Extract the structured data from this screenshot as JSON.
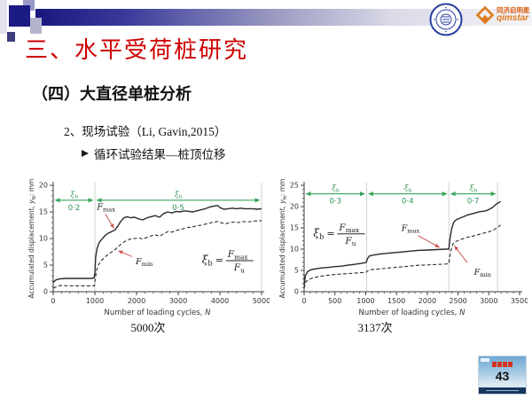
{
  "header": {
    "title": "三、水平受荷桩研究",
    "logos": {
      "seal_icon": "tongji-university-seal",
      "qimstar_icon": "orange-diamond",
      "qimstar_cn": "同济启明星",
      "qimstar_en": "qimstar"
    }
  },
  "body": {
    "section_heading": "（四）大直径单桩分析",
    "item": "2、现场试验（Li, Gavin,2015）",
    "bullet": {
      "icon": "arrowhead-right",
      "text": "循环试验结果—桩顶位移"
    },
    "captions": {
      "left": "5000次",
      "right": "3137次"
    }
  },
  "footer": {
    "page_number": "43"
  },
  "colors": {
    "title_red": "#cc0000",
    "arrow_green": "#3aa45e",
    "green_text": "#2f9150",
    "annotation_red": "#cc5550",
    "bar_navy": "#1b1b86",
    "logo_orange": "#e07a1d",
    "line_dark": "#2a2a2a",
    "grid_gray": "#cccccc"
  },
  "chart_data": [
    {
      "type": "line",
      "title": "5000次",
      "xlabel_parts": {
        "pre": "Number of loading cycles, ",
        "var": "N"
      },
      "ylabel_parts": {
        "pre": "Accumulated displacement, ",
        "var": "y",
        "sub": "N",
        "post": ": mm"
      },
      "xlim": [
        0,
        5000
      ],
      "ylim": [
        0,
        20
      ],
      "xticks": [
        0,
        1000,
        2000,
        3000,
        4000,
        5000
      ],
      "yticks": [
        0,
        5,
        10,
        15,
        20
      ],
      "x_minor_step": 200,
      "y_minor_step": 1,
      "grid": false,
      "legend": "none",
      "boundary_lines": [
        1000,
        5000
      ],
      "ratio_arrow_y": 17.2,
      "ratio_segments": [
        {
          "symbol": "ξ_b",
          "value": "0·2",
          "from": 0,
          "to": 1000
        },
        {
          "symbol": "ξ_b",
          "value": "0·5",
          "from": 1000,
          "to": 5000
        }
      ],
      "equation": {
        "lhs": "ξ_b",
        "num": "F_max",
        "den": "F_u",
        "x": 3570,
        "y": 6.0
      },
      "annotations": [
        {
          "label": "F_max",
          "x": 1050,
          "y": 15.4,
          "ax": 1250,
          "ay": 14.6,
          "tx": 1460,
          "ty": 11.9
        },
        {
          "label": "F_min",
          "x": 1980,
          "y": 5.2,
          "ax": 1900,
          "ay": 6.6,
          "tx": 1560,
          "ty": 7.7
        }
      ],
      "series": [
        {
          "name": "F_max",
          "style": "solid",
          "points": [
            [
              0,
              1.7
            ],
            [
              60,
              2.2
            ],
            [
              150,
              2.4
            ],
            [
              300,
              2.5
            ],
            [
              500,
              2.5
            ],
            [
              700,
              2.5
            ],
            [
              900,
              2.5
            ],
            [
              980,
              2.6
            ],
            [
              1000,
              3.5
            ],
            [
              1020,
              6.5
            ],
            [
              1050,
              8.0
            ],
            [
              1100,
              9.2
            ],
            [
              1180,
              10.0
            ],
            [
              1250,
              10.6
            ],
            [
              1320,
              11.0
            ],
            [
              1400,
              11.3
            ],
            [
              1480,
              11.6
            ],
            [
              1550,
              12.3
            ],
            [
              1620,
              13.2
            ],
            [
              1700,
              13.9
            ],
            [
              1780,
              14.1
            ],
            [
              1850,
              13.9
            ],
            [
              1950,
              14.0
            ],
            [
              2050,
              13.7
            ],
            [
              2150,
              13.5
            ],
            [
              2250,
              13.9
            ],
            [
              2350,
              14.1
            ],
            [
              2450,
              14.3
            ],
            [
              2550,
              14.0
            ],
            [
              2650,
              14.7
            ],
            [
              2750,
              15.0
            ],
            [
              2850,
              14.8
            ],
            [
              2950,
              15.1
            ],
            [
              3050,
              15.0
            ],
            [
              3150,
              15.2
            ],
            [
              3250,
              15.1
            ],
            [
              3350,
              15.0
            ],
            [
              3450,
              15.2
            ],
            [
              3550,
              15.4
            ],
            [
              3650,
              15.6
            ],
            [
              3750,
              15.9
            ],
            [
              3850,
              16.1
            ],
            [
              3950,
              16.2
            ],
            [
              4000,
              15.8
            ],
            [
              4100,
              15.5
            ],
            [
              4200,
              15.6
            ],
            [
              4300,
              15.7
            ],
            [
              4400,
              15.6
            ],
            [
              4500,
              15.7
            ],
            [
              4600,
              15.6
            ],
            [
              4700,
              15.6
            ],
            [
              4800,
              15.6
            ],
            [
              4900,
              15.5
            ],
            [
              5000,
              15.6
            ]
          ]
        },
        {
          "name": "F_min",
          "style": "dashed",
          "points": [
            [
              0,
              0.7
            ],
            [
              100,
              1.0
            ],
            [
              200,
              1.2
            ],
            [
              350,
              1.1
            ],
            [
              500,
              1.1
            ],
            [
              700,
              1.1
            ],
            [
              900,
              1.1
            ],
            [
              990,
              1.1
            ],
            [
              1010,
              2.5
            ],
            [
              1040,
              4.0
            ],
            [
              1080,
              5.0
            ],
            [
              1150,
              5.8
            ],
            [
              1250,
              6.6
            ],
            [
              1350,
              7.2
            ],
            [
              1450,
              7.7
            ],
            [
              1500,
              8.0
            ],
            [
              1550,
              8.4
            ],
            [
              1650,
              9.1
            ],
            [
              1750,
              9.6
            ],
            [
              1850,
              9.9
            ],
            [
              1950,
              10.0
            ],
            [
              2050,
              10.1
            ],
            [
              2150,
              9.9
            ],
            [
              2250,
              10.2
            ],
            [
              2350,
              10.5
            ],
            [
              2450,
              10.7
            ],
            [
              2550,
              10.4
            ],
            [
              2650,
              10.9
            ],
            [
              2750,
              11.3
            ],
            [
              2850,
              11.2
            ],
            [
              2950,
              11.5
            ],
            [
              3050,
              11.7
            ],
            [
              3150,
              11.9
            ],
            [
              3250,
              12.1
            ],
            [
              3350,
              12.2
            ],
            [
              3450,
              12.4
            ],
            [
              3550,
              12.5
            ],
            [
              3650,
              12.7
            ],
            [
              3750,
              12.9
            ],
            [
              3850,
              13.1
            ],
            [
              3950,
              13.2
            ],
            [
              4050,
              12.9
            ],
            [
              4150,
              12.8
            ],
            [
              4250,
              13.0
            ],
            [
              4350,
              13.1
            ],
            [
              4450,
              13.0
            ],
            [
              4550,
              13.2
            ],
            [
              4650,
              13.1
            ],
            [
              4750,
              13.2
            ],
            [
              4850,
              13.3
            ],
            [
              4950,
              13.3
            ],
            [
              5000,
              13.4
            ]
          ]
        }
      ]
    },
    {
      "type": "line",
      "title": "3137次",
      "xlabel_parts": {
        "pre": "Number of loading cycles, ",
        "var": "N"
      },
      "ylabel_parts": {
        "pre": "Accumulated displacement, ",
        "var": "y",
        "sub": "N",
        "post": ": mm"
      },
      "xlim": [
        0,
        3500
      ],
      "ylim": [
        0,
        25
      ],
      "xticks": [
        0,
        500,
        1000,
        1500,
        2000,
        2500,
        3000,
        3500
      ],
      "yticks": [
        0,
        5,
        10,
        15,
        20,
        25
      ],
      "x_minor_step": 100,
      "y_minor_step": 1,
      "grid": false,
      "legend": "none",
      "boundary_lines": [
        1015,
        2350,
        3140
      ],
      "ratio_arrow_y": 23,
      "ratio_segments": [
        {
          "symbol": "ξ_b",
          "value": "0·3",
          "from": 0,
          "to": 1015
        },
        {
          "symbol": "ξ_b",
          "value": "0·4",
          "from": 1015,
          "to": 2350
        },
        {
          "symbol": "ξ_b",
          "value": "0·7",
          "from": 2350,
          "to": 3140
        }
      ],
      "equation": {
        "lhs": "ξ_b",
        "num": "F_max",
        "den": "F_u",
        "x": 150,
        "y": 13.8
      },
      "annotations": [
        {
          "label": "F_max",
          "x": 1580,
          "y": 14.3,
          "ax": 1850,
          "ay": 13.2,
          "tx": 2200,
          "ty": 10.4
        },
        {
          "label": "F_min",
          "x": 2760,
          "y": 4.0,
          "ax": 2650,
          "ay": 6.8,
          "tx": 2440,
          "ty": 10.8
        }
      ],
      "series": [
        {
          "name": "F_max",
          "style": "solid",
          "points": [
            [
              0,
              1.5
            ],
            [
              20,
              3.8
            ],
            [
              60,
              4.8
            ],
            [
              120,
              5.2
            ],
            [
              200,
              5.4
            ],
            [
              300,
              5.6
            ],
            [
              400,
              5.7
            ],
            [
              500,
              5.9
            ],
            [
              600,
              6.0
            ],
            [
              700,
              6.2
            ],
            [
              800,
              6.4
            ],
            [
              900,
              6.6
            ],
            [
              980,
              6.8
            ],
            [
              1010,
              6.9
            ],
            [
              1030,
              7.8
            ],
            [
              1060,
              8.4
            ],
            [
              1120,
              8.6
            ],
            [
              1250,
              8.9
            ],
            [
              1400,
              9.1
            ],
            [
              1550,
              9.3
            ],
            [
              1700,
              9.5
            ],
            [
              1850,
              9.7
            ],
            [
              2000,
              9.8
            ],
            [
              2150,
              9.9
            ],
            [
              2300,
              10.0
            ],
            [
              2350,
              10.0
            ],
            [
              2370,
              12.5
            ],
            [
              2400,
              15.0
            ],
            [
              2430,
              16.3
            ],
            [
              2470,
              16.9
            ],
            [
              2550,
              17.4
            ],
            [
              2650,
              18.0
            ],
            [
              2750,
              18.4
            ],
            [
              2850,
              18.8
            ],
            [
              2950,
              19.0
            ],
            [
              3000,
              19.3
            ],
            [
              3060,
              19.8
            ],
            [
              3100,
              20.3
            ],
            [
              3140,
              20.8
            ],
            [
              3170,
              21.0
            ],
            [
              3190,
              21.2
            ]
          ]
        },
        {
          "name": "F_min",
          "style": "dashed",
          "points": [
            [
              0,
              0.8
            ],
            [
              30,
              2.4
            ],
            [
              80,
              2.9
            ],
            [
              150,
              3.3
            ],
            [
              250,
              3.6
            ],
            [
              350,
              3.8
            ],
            [
              450,
              4.0
            ],
            [
              550,
              4.1
            ],
            [
              650,
              4.2
            ],
            [
              750,
              4.3
            ],
            [
              850,
              4.4
            ],
            [
              950,
              4.5
            ],
            [
              1010,
              4.6
            ],
            [
              1040,
              5.0
            ],
            [
              1100,
              5.2
            ],
            [
              1250,
              5.4
            ],
            [
              1400,
              5.6
            ],
            [
              1550,
              5.8
            ],
            [
              1700,
              6.0
            ],
            [
              1850,
              6.2
            ],
            [
              2000,
              6.3
            ],
            [
              2150,
              6.4
            ],
            [
              2300,
              6.5
            ],
            [
              2350,
              6.6
            ],
            [
              2380,
              9.5
            ],
            [
              2420,
              11.3
            ],
            [
              2460,
              11.8
            ],
            [
              2550,
              12.3
            ],
            [
              2650,
              12.8
            ],
            [
              2750,
              13.1
            ],
            [
              2850,
              13.5
            ],
            [
              2950,
              13.9
            ],
            [
              3050,
              14.3
            ],
            [
              3100,
              14.7
            ],
            [
              3140,
              15.1
            ],
            [
              3170,
              15.4
            ],
            [
              3190,
              15.7
            ]
          ]
        }
      ]
    }
  ]
}
